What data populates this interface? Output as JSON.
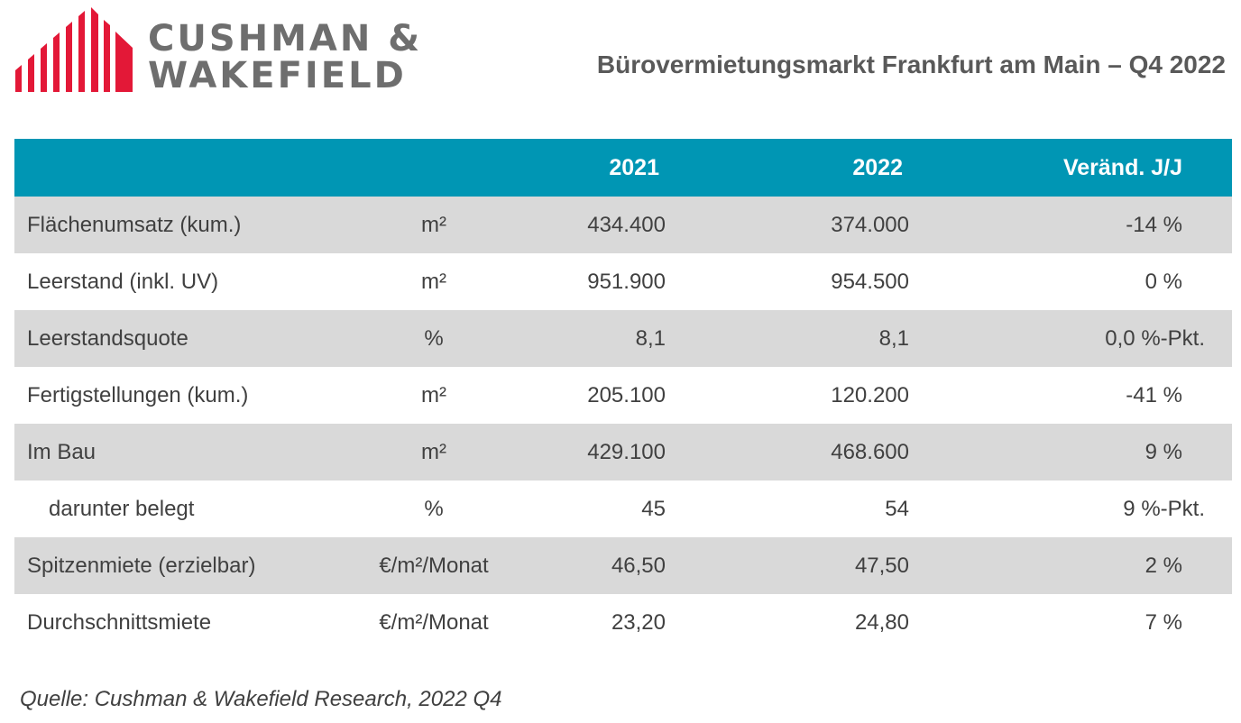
{
  "brand": {
    "line1": "CUSHMAN &",
    "line2": "WAKEFIELD",
    "logo_color": "#e31837",
    "text_color": "#6e6e6e"
  },
  "title": "Bürovermietungsmarkt Frankfurt am Main – Q4 2022",
  "table": {
    "header_color": "#0096b4",
    "columns": [
      "",
      "",
      "2021",
      "2022",
      "Veränd. J/J"
    ],
    "rows": [
      {
        "label": "Flächenumsatz (kum.)",
        "unit": "m²",
        "y2021": "434.400",
        "y2022": "374.000",
        "change": "-14 %"
      },
      {
        "label": "Leerstand (inkl. UV)",
        "unit": "m²",
        "y2021": "951.900",
        "y2022": "954.500",
        "change": "0 %"
      },
      {
        "label": "Leerstandsquote",
        "unit": "%",
        "y2021": "8,1",
        "y2022": "8,1",
        "change": "0,0 %-Pkt."
      },
      {
        "label": "Fertigstellungen (kum.)",
        "unit": "m²",
        "y2021": "205.100",
        "y2022": "120.200",
        "change": "-41 %"
      },
      {
        "label": "Im Bau",
        "unit": "m²",
        "y2021": "429.100",
        "y2022": "468.600",
        "change": "9 %"
      },
      {
        "label": "darunter belegt",
        "unit": "%",
        "y2021": "45",
        "y2022": "54",
        "change": "9 %-Pkt."
      },
      {
        "label": "Spitzenmiete (erzielbar)",
        "unit": "€/m²/Monat",
        "y2021": "46,50",
        "y2022": "47,50",
        "change": "2 %"
      },
      {
        "label": "Durchschnittsmiete",
        "unit": "€/m²/Monat",
        "y2021": "23,20",
        "y2022": "24,80",
        "change": "7 %"
      }
    ]
  },
  "source": "Quelle: Cushman & Wakefield Research, 2022 Q4"
}
